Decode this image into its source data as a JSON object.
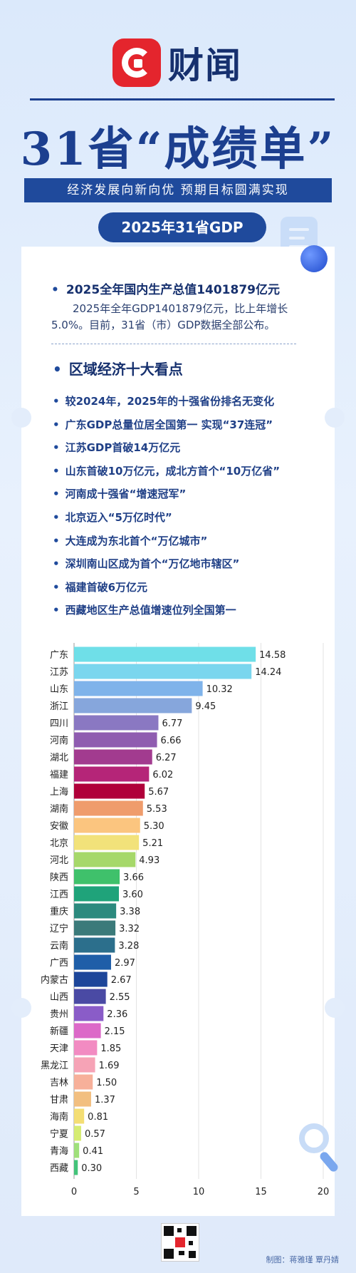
{
  "logo": {
    "brand": "财闻"
  },
  "title": "31省“成绩单”",
  "subtitle": "经济发展向新向优  预期目标圆满实现",
  "pill": "2025年31省GDP",
  "section1": {
    "heading": "2025全年国内生产总值1401879亿元",
    "text": "2025年全年GDP1401879亿元，比上年增长5.0%。目前，31省（市）GDP数据全部公布。"
  },
  "section2": {
    "heading": "区域经济十大看点",
    "items": [
      "较2024年，2025年的十强省份排名无变化",
      "广东GDP总量位居全国第一  实现“37连冠”",
      "江苏GDP首破14万亿元",
      "山东首破10万亿元，成北方首个“10万亿省”",
      "河南成十强省“增速冠军”",
      "北京迈入“5万亿时代”",
      "大连成为东北首个“万亿城市”",
      "深圳南山区成为首个“万亿地市辖区”",
      "福建首破6万亿元",
      "西藏地区生产总值增速位列全国第一"
    ]
  },
  "chart_data": {
    "type": "bar",
    "orientation": "horizontal",
    "title": "",
    "xlabel": "",
    "ylabel": "",
    "xlim": [
      0,
      20
    ],
    "xticks": [
      0,
      5,
      10,
      15,
      20
    ],
    "grid": true,
    "categories": [
      "广东",
      "江苏",
      "山东",
      "浙江",
      "四川",
      "河南",
      "湖北",
      "福建",
      "上海",
      "湖南",
      "安徽",
      "北京",
      "河北",
      "陕西",
      "江西",
      "重庆",
      "辽宁",
      "云南",
      "广西",
      "内蒙古",
      "山西",
      "贵州",
      "新疆",
      "天津",
      "黑龙江",
      "吉林",
      "甘肃",
      "海南",
      "宁夏",
      "青海",
      "西藏"
    ],
    "values": [
      14.58,
      14.24,
      10.32,
      9.45,
      6.77,
      6.66,
      6.27,
      6.02,
      5.67,
      5.53,
      5.3,
      5.21,
      4.93,
      3.66,
      3.6,
      3.38,
      3.32,
      3.28,
      2.97,
      2.67,
      2.55,
      2.36,
      2.15,
      1.85,
      1.69,
      1.5,
      1.37,
      0.81,
      0.57,
      0.41,
      0.3
    ],
    "value_labels": [
      "14.58",
      "14.24",
      "10.32",
      "9.45",
      "6.77",
      "6.66",
      "6.27",
      "6.02",
      "5.67",
      "5.53",
      "5.30",
      "5.21",
      "4.93",
      "3.66",
      "3.60",
      "3.38",
      "3.32",
      "3.28",
      "2.97",
      "2.67",
      "2.55",
      "2.36",
      "2.15",
      "1.85",
      "1.69",
      "1.50",
      "1.37",
      "0.81",
      "0.57",
      "0.41",
      "0.30"
    ],
    "colors": [
      "#6fdfe8",
      "#7ad6ee",
      "#7fb3ea",
      "#86a6dc",
      "#8a78c2",
      "#8f5cb0",
      "#a23b8f",
      "#b52578",
      "#b0003a",
      "#ef9c6c",
      "#fbc57f",
      "#f2e27a",
      "#a6d86a",
      "#3fc16b",
      "#1fa37a",
      "#2c8a7e",
      "#3b7a7a",
      "#2c6f8c",
      "#1f5ea8",
      "#1d469a",
      "#4a4aa4",
      "#8a5cc8",
      "#dc69c8",
      "#f28bc2",
      "#f6a3b6",
      "#f7b09a",
      "#f2bf80",
      "#f4de74",
      "#d6ec73",
      "#9fe07a",
      "#43c47a"
    ]
  },
  "credit": "制图：蒋雅瑾  覃丹婧"
}
